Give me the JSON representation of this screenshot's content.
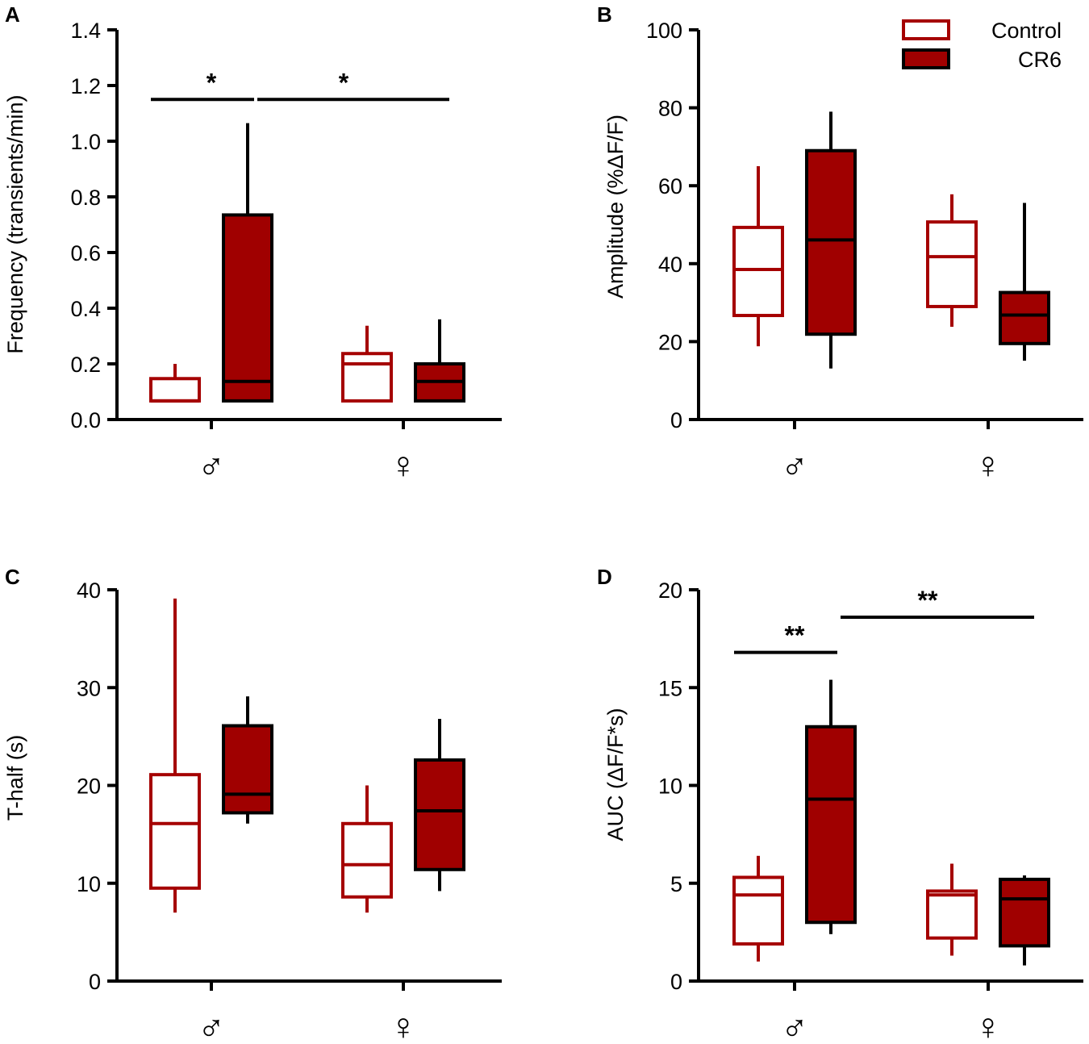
{
  "colors": {
    "control": "#a50000",
    "cr6_fill": "#a00000",
    "cr6_stroke": "#000000",
    "axis": "#000000"
  },
  "legend": [
    {
      "label": "Control",
      "style": "control"
    },
    {
      "label": "CR6",
      "style": "cr6"
    }
  ],
  "chart_data": [
    {
      "panel": "A",
      "type": "box",
      "ylabel": "Frequency (transients/min)",
      "ylim": [
        0,
        1.4
      ],
      "yticks": [
        "0.0",
        "0.2",
        "0.4",
        "0.6",
        "0.8",
        "1.0",
        "1.2",
        "1.4"
      ],
      "categories": [
        "♂",
        "♀"
      ],
      "series": [
        {
          "name": "Control",
          "boxes": [
            {
              "min": 0.067,
              "q1": 0.067,
              "median": 0.067,
              "q3": 0.147,
              "max": 0.2
            },
            {
              "min": 0.067,
              "q1": 0.067,
              "median": 0.2,
              "q3": 0.237,
              "max": 0.337
            }
          ]
        },
        {
          "name": "CR6",
          "boxes": [
            {
              "min": 0.067,
              "q1": 0.067,
              "median": 0.137,
              "q3": 0.735,
              "max": 1.065
            },
            {
              "min": 0.067,
              "q1": 0.067,
              "median": 0.137,
              "q3": 0.2,
              "max": 0.36
            }
          ]
        }
      ],
      "significance": [
        {
          "label": "*",
          "from": [
            0,
            "Control"
          ],
          "to": [
            0,
            "CR6"
          ],
          "y": 1.15
        },
        {
          "label": "*",
          "from": [
            0,
            "CR6"
          ],
          "to": [
            1,
            "CR6"
          ],
          "y": 1.15
        }
      ]
    },
    {
      "panel": "B",
      "type": "box",
      "ylabel": "Amplitude (%ΔF/F)",
      "ylim": [
        0,
        100
      ],
      "yticks": [
        "0",
        "20",
        "40",
        "60",
        "80",
        "100"
      ],
      "categories": [
        "♂",
        "♀"
      ],
      "series": [
        {
          "name": "Control",
          "boxes": [
            {
              "min": 18.8,
              "q1": 26.7,
              "median": 38.5,
              "q3": 49.3,
              "max": 65.0
            },
            {
              "min": 23.8,
              "q1": 29.0,
              "median": 41.8,
              "q3": 50.7,
              "max": 57.8
            }
          ]
        },
        {
          "name": "CR6",
          "boxes": [
            {
              "min": 13.1,
              "q1": 21.9,
              "median": 46.1,
              "q3": 69.0,
              "max": 79.0
            },
            {
              "min": 15.1,
              "q1": 19.5,
              "median": 26.8,
              "q3": 32.6,
              "max": 55.6
            }
          ]
        }
      ],
      "significance": []
    },
    {
      "panel": "C",
      "type": "box",
      "ylabel": "T-half (s)",
      "ylim": [
        0,
        40
      ],
      "yticks": [
        "0",
        "10",
        "20",
        "30",
        "40"
      ],
      "categories": [
        "♂",
        "♀"
      ],
      "series": [
        {
          "name": "Control",
          "boxes": [
            {
              "min": 7.0,
              "q1": 9.5,
              "median": 16.1,
              "q3": 21.1,
              "max": 39.1
            },
            {
              "min": 7.0,
              "q1": 8.6,
              "median": 11.9,
              "q3": 16.1,
              "max": 20.0
            }
          ]
        },
        {
          "name": "CR6",
          "boxes": [
            {
              "min": 16.1,
              "q1": 17.2,
              "median": 19.1,
              "q3": 26.1,
              "max": 29.1
            },
            {
              "min": 9.2,
              "q1": 11.4,
              "median": 17.4,
              "q3": 22.6,
              "max": 26.8
            }
          ]
        }
      ],
      "significance": []
    },
    {
      "panel": "D",
      "type": "box",
      "ylabel": "AUC (ΔF/F*s)",
      "ylim": [
        0,
        20
      ],
      "yticks": [
        "0",
        "5",
        "10",
        "15",
        "20"
      ],
      "categories": [
        "♂",
        "♀"
      ],
      "series": [
        {
          "name": "Control",
          "boxes": [
            {
              "min": 1.0,
              "q1": 1.9,
              "median": 4.4,
              "q3": 5.3,
              "max": 6.4
            },
            {
              "min": 1.3,
              "q1": 2.2,
              "median": 4.4,
              "q3": 4.6,
              "max": 6.0
            }
          ]
        },
        {
          "name": "CR6",
          "boxes": [
            {
              "min": 2.4,
              "q1": 3.0,
              "median": 9.3,
              "q3": 13.0,
              "max": 15.4
            },
            {
              "min": 0.8,
              "q1": 1.8,
              "median": 4.2,
              "q3": 5.2,
              "max": 5.4
            }
          ]
        }
      ],
      "significance": [
        {
          "label": "**",
          "from": [
            0,
            "Control"
          ],
          "to": [
            0,
            "CR6"
          ],
          "y": 16.8
        },
        {
          "label": "**",
          "from": [
            0,
            "CR6"
          ],
          "to": [
            1,
            "CR6"
          ],
          "y": 18.6
        }
      ]
    }
  ]
}
